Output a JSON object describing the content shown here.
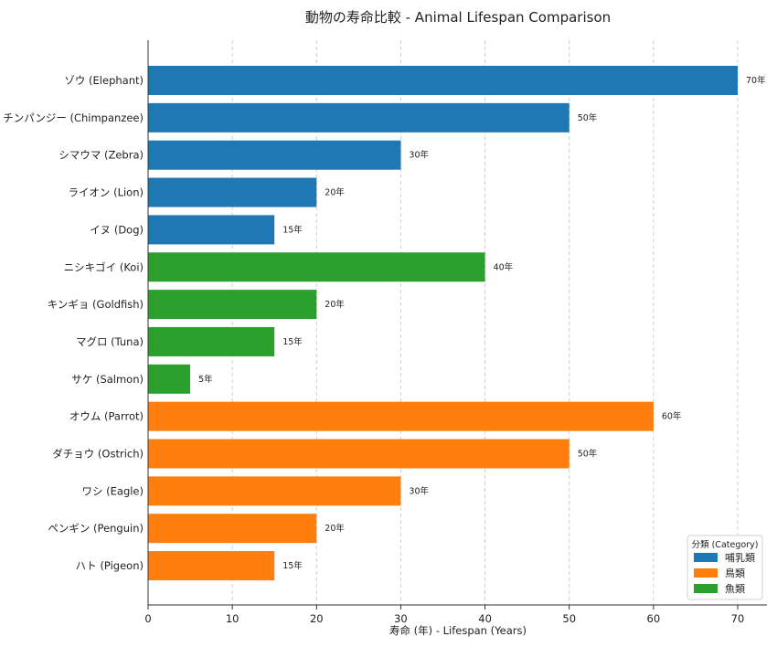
{
  "chart_data": {
    "type": "bar",
    "orientation": "horizontal",
    "title": "動物の寿命比較 - Animal Lifespan Comparison",
    "xlabel": "寿命 (年) - Lifespan (Years)",
    "ylabel": "",
    "xlim": [
      0,
      73
    ],
    "xticks": [
      0,
      10,
      20,
      30,
      40,
      50,
      60,
      70
    ],
    "grid": "x-dashed",
    "legend_position": "bottom-right",
    "legend_title": "分類 (Category)",
    "groups": [
      {
        "name": "哺乳類",
        "color": "#1f77b4"
      },
      {
        "name": "鳥類",
        "color": "#ff7f0e"
      },
      {
        "name": "魚類",
        "color": "#2ca02c"
      }
    ],
    "bars": [
      {
        "label": "ゾウ (Elephant)",
        "value": 70,
        "group": 0,
        "value_label": "70年"
      },
      {
        "label": "チンパンジー (Chimpanzee)",
        "value": 50,
        "group": 0,
        "value_label": "50年"
      },
      {
        "label": "シマウマ (Zebra)",
        "value": 30,
        "group": 0,
        "value_label": "30年"
      },
      {
        "label": "ライオン (Lion)",
        "value": 20,
        "group": 0,
        "value_label": "20年"
      },
      {
        "label": "イヌ (Dog)",
        "value": 15,
        "group": 0,
        "value_label": "15年"
      },
      {
        "label": "ニシキゴイ (Koi)",
        "value": 40,
        "group": 2,
        "value_label": "40年"
      },
      {
        "label": "キンギョ (Goldfish)",
        "value": 20,
        "group": 2,
        "value_label": "20年"
      },
      {
        "label": "マグロ (Tuna)",
        "value": 15,
        "group": 2,
        "value_label": "15年"
      },
      {
        "label": "サケ (Salmon)",
        "value": 5,
        "group": 2,
        "value_label": "5年"
      },
      {
        "label": "オウム (Parrot)",
        "value": 60,
        "group": 1,
        "value_label": "60年"
      },
      {
        "label": "ダチョウ (Ostrich)",
        "value": 50,
        "group": 1,
        "value_label": "50年"
      },
      {
        "label": "ワシ (Eagle)",
        "value": 30,
        "group": 1,
        "value_label": "30年"
      },
      {
        "label": "ペンギン (Penguin)",
        "value": 20,
        "group": 1,
        "value_label": "20年"
      },
      {
        "label": "ハト (Pigeon)",
        "value": 15,
        "group": 1,
        "value_label": "15年"
      }
    ]
  }
}
